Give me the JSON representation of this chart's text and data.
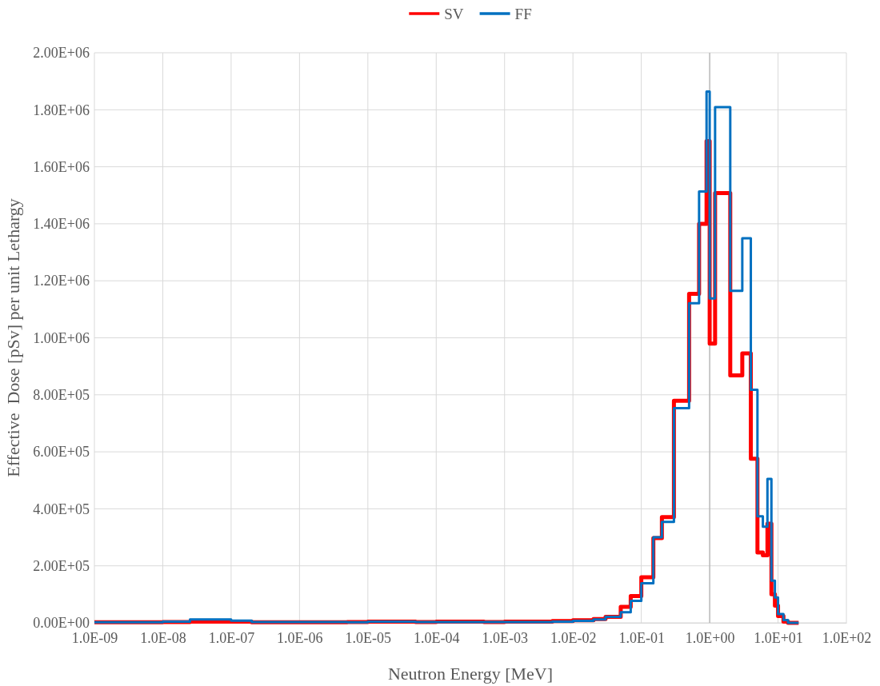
{
  "chart_data": {
    "type": "step",
    "xlabel": "Neutron Energy [MeV]",
    "ylabel": "Effective  Dose [pSv] per unit Lethargy",
    "log": "x",
    "grid": true,
    "legend": "top",
    "marker": "none",
    "line_style": "solid",
    "x": [
      1e-09,
      1e-08,
      2.5e-08,
      1e-07,
      2e-07,
      5e-06,
      1e-05,
      5e-05,
      0.0001,
      0.0005,
      0.001,
      0.005,
      0.01,
      0.02,
      0.03,
      0.05,
      0.07,
      0.1,
      0.15,
      0.2,
      0.3,
      0.5,
      0.7,
      0.9,
      1.0,
      1.2,
      2,
      3,
      4,
      5,
      6,
      7,
      8,
      9,
      10,
      12,
      14,
      20
    ],
    "series": [
      {
        "name": "SV",
        "color": "#ff0000",
        "values": [
          2000,
          3000,
          4000,
          4000,
          2000,
          3000,
          4000,
          3000,
          4000,
          3000,
          4000,
          6000,
          9000,
          13000,
          21000,
          56000,
          94000,
          160000,
          297000,
          371000,
          779000,
          1154000,
          1400000,
          1690000,
          980000,
          1508000,
          868000,
          945000,
          576000,
          247000,
          237000,
          348000,
          100000,
          60000,
          24000,
          4000,
          0,
          0
        ]
      },
      {
        "name": "FF",
        "color": "#0070c0",
        "values": [
          2000,
          4000,
          12000,
          8000,
          3000,
          2000,
          4000,
          3000,
          3000,
          3000,
          3000,
          4000,
          7000,
          12000,
          21000,
          37000,
          77000,
          139000,
          300000,
          354000,
          753000,
          1121000,
          1513000,
          1864000,
          1138000,
          1809000,
          1165000,
          1349000,
          818000,
          374000,
          337000,
          505000,
          148000,
          89000,
          31000,
          10000,
          0,
          0
        ]
      }
    ],
    "xlim": [
      1e-09,
      100
    ],
    "xticks": [
      {
        "value": 1e-09,
        "label": "1.0E-09"
      },
      {
        "value": 1e-08,
        "label": "1.0E-08"
      },
      {
        "value": 1e-07,
        "label": "1.0E-07"
      },
      {
        "value": 1e-06,
        "label": "1.0E-06"
      },
      {
        "value": 1e-05,
        "label": "1.0E-05"
      },
      {
        "value": 0.0001,
        "label": "1.0E-04"
      },
      {
        "value": 0.001,
        "label": "1.0E-03"
      },
      {
        "value": 0.01,
        "label": "1.0E-02"
      },
      {
        "value": 0.1,
        "label": "1.0E-01"
      },
      {
        "value": 1,
        "label": "1.0E+00"
      },
      {
        "value": 10,
        "label": "1.0E+01"
      },
      {
        "value": 100,
        "label": "1.0E+02"
      }
    ],
    "ref_lines": [
      {
        "axis": "x",
        "value": 1,
        "color": "#a6a6a6"
      }
    ],
    "ylim": [
      0,
      2000000
    ],
    "yticks": [
      {
        "value": 0,
        "label": "0.00E+00"
      },
      {
        "value": 200000,
        "label": "2.00E+05"
      },
      {
        "value": 400000,
        "label": "4.00E+05"
      },
      {
        "value": 600000,
        "label": "6.00E+05"
      },
      {
        "value": 800000,
        "label": "8.00E+05"
      },
      {
        "value": 1000000,
        "label": "1.00E+06"
      },
      {
        "value": 1200000,
        "label": "1.20E+06"
      },
      {
        "value": 1400000,
        "label": "1.40E+06"
      },
      {
        "value": 1600000,
        "label": "1.60E+06"
      },
      {
        "value": 1800000,
        "label": "1.80E+06"
      },
      {
        "value": 2000000,
        "label": "2.00E+06"
      }
    ]
  }
}
